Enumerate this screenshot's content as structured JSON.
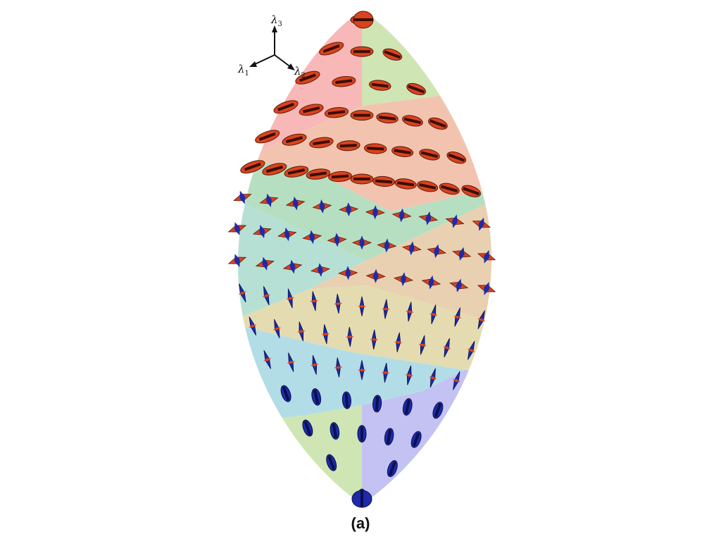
{
  "figure": {
    "caption": "(a)",
    "axes": [
      {
        "symbol": "λ",
        "sub": "3"
      },
      {
        "symbol": "λ",
        "sub": "1"
      },
      {
        "symbol": "λ",
        "sub": "2"
      }
    ]
  },
  "colors": {
    "glyph_red": "#d9431e",
    "glyph_blue": "#1e2aa8",
    "region_pink": "#f8b8b8",
    "region_lightgreen": "#cfe6b4",
    "region_salmon": "#f2c4b0",
    "region_green": "#b5dfc0",
    "region_teal": "#b6e0d4",
    "region_tan": "#e8d0b0",
    "region_beige": "#e4dcb0",
    "region_cyan": "#b3dde6",
    "region_lavender": "#c4c2f2"
  }
}
